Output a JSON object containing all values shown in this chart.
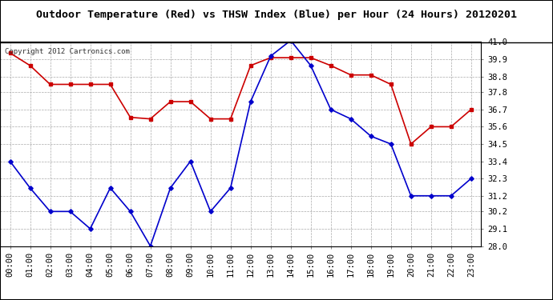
{
  "title": "Outdoor Temperature (Red) vs THSW Index (Blue) per Hour (24 Hours) 20120201",
  "copyright": "Copyright 2012 Cartronics.com",
  "hours": [
    "00:00",
    "01:00",
    "02:00",
    "03:00",
    "04:00",
    "05:00",
    "06:00",
    "07:00",
    "08:00",
    "09:00",
    "10:00",
    "11:00",
    "12:00",
    "13:00",
    "14:00",
    "15:00",
    "16:00",
    "17:00",
    "18:00",
    "19:00",
    "20:00",
    "21:00",
    "22:00",
    "23:00"
  ],
  "red_data": [
    40.3,
    39.5,
    38.3,
    38.3,
    38.3,
    38.3,
    36.2,
    36.1,
    37.2,
    37.2,
    36.1,
    36.1,
    39.5,
    40.0,
    40.0,
    40.0,
    39.5,
    38.9,
    38.9,
    38.3,
    34.5,
    35.6,
    35.6,
    36.7
  ],
  "blue_data": [
    33.4,
    31.7,
    30.2,
    30.2,
    29.1,
    31.7,
    30.2,
    28.0,
    31.7,
    33.4,
    30.2,
    31.7,
    37.2,
    40.1,
    41.1,
    39.5,
    36.7,
    36.1,
    35.0,
    34.5,
    31.2,
    31.2,
    31.2,
    32.3
  ],
  "red_color": "#cc0000",
  "blue_color": "#0000cc",
  "bg_color": "#ffffff",
  "grid_color": "#aaaaaa",
  "ylim": [
    28.0,
    41.0
  ],
  "yticks": [
    28.0,
    29.1,
    30.2,
    31.2,
    32.3,
    33.4,
    34.5,
    35.6,
    36.7,
    37.8,
    38.8,
    39.9,
    41.0
  ],
  "title_fontsize": 9.5,
  "copyright_fontsize": 6.5,
  "tick_fontsize": 7.5,
  "border_color": "#000000"
}
